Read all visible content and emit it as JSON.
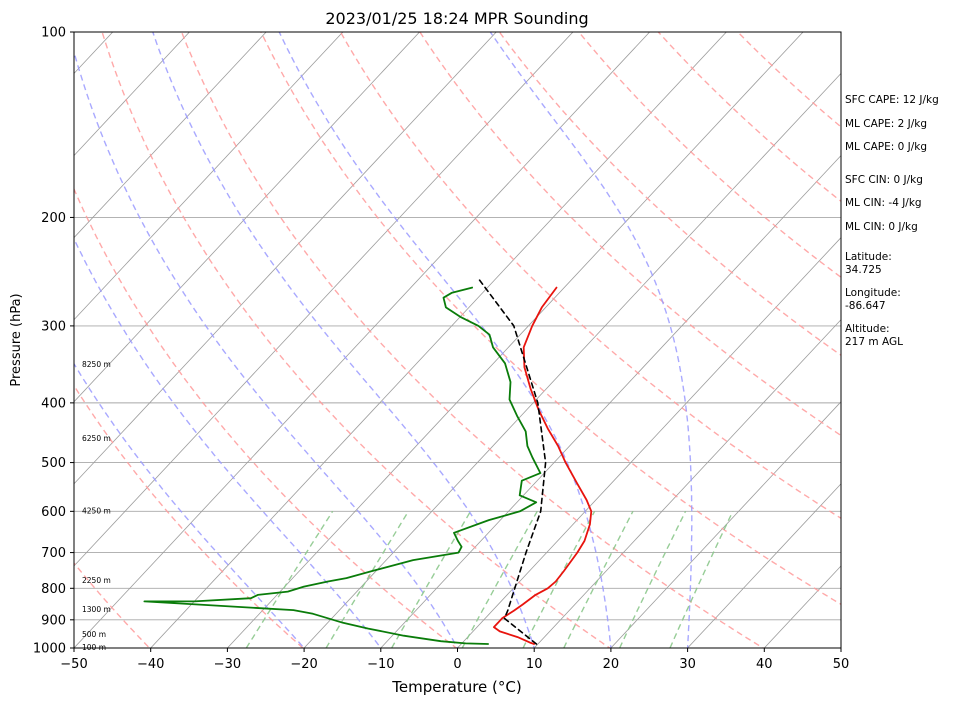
{
  "chart_data": {
    "type": "skew-t",
    "title": "2023/01/25 18:24 MPR Sounding",
    "xlabel": "Temperature (°C)",
    "ylabel": "Pressure (hPa)",
    "xlim": [
      -50,
      50
    ],
    "ylim": [
      1000,
      100
    ],
    "y_scale": "log",
    "x_ticks": [
      "−50",
      "−40",
      "−30",
      "−20",
      "−10",
      "0",
      "10",
      "20",
      "30",
      "40",
      "50"
    ],
    "y_ticks": [
      "100",
      "200",
      "300",
      "400",
      "500",
      "600",
      "700",
      "800",
      "900",
      "1000"
    ],
    "grid": true,
    "height_labels": [
      {
        "text": "100 m",
        "p": 1000
      },
      {
        "text": "500 m",
        "p": 953
      },
      {
        "text": "1300 m",
        "p": 868
      },
      {
        "text": "2250 m",
        "p": 778
      },
      {
        "text": "4250 m",
        "p": 600
      },
      {
        "text": "6250 m",
        "p": 458
      },
      {
        "text": "8250 m",
        "p": 347
      }
    ],
    "series": [
      {
        "color": "#e8140e",
        "style": "solid",
        "points": [
          [
            9.5,
            985
          ],
          [
            8.8,
            980
          ],
          [
            6.5,
            960
          ],
          [
            3.5,
            940
          ],
          [
            2.2,
            925
          ],
          [
            2.2,
            910
          ],
          [
            2.2,
            895
          ],
          [
            2.8,
            870
          ],
          [
            3.2,
            850
          ],
          [
            3.7,
            820
          ],
          [
            4.5,
            800
          ],
          [
            4.7,
            780
          ],
          [
            4.5,
            750
          ],
          [
            4.0,
            700
          ],
          [
            3.5,
            670
          ],
          [
            2.2,
            630
          ],
          [
            0.8,
            600
          ],
          [
            -1.2,
            575
          ],
          [
            -4.5,
            540
          ],
          [
            -8.5,
            500
          ],
          [
            -11.5,
            470
          ],
          [
            -15,
            440
          ],
          [
            -18.5,
            410
          ],
          [
            -22,
            380
          ],
          [
            -25.5,
            350
          ],
          [
            -28,
            325
          ],
          [
            -29.5,
            300
          ],
          [
            -30.5,
            280
          ],
          [
            -31,
            260
          ]
        ]
      },
      {
        "color": "#0a7c0a",
        "style": "solid",
        "points": [
          [
            3.5,
            985
          ],
          [
            0.5,
            983
          ],
          [
            -3,
            975
          ],
          [
            -8.5,
            955
          ],
          [
            -14,
            930
          ],
          [
            -18,
            910
          ],
          [
            -23,
            880
          ],
          [
            -26,
            868
          ],
          [
            -46.5,
            840
          ],
          [
            -40,
            840
          ],
          [
            -33,
            830
          ],
          [
            -32.5,
            820
          ],
          [
            -29,
            810
          ],
          [
            -27.5,
            795
          ],
          [
            -25,
            780
          ],
          [
            -23,
            770
          ],
          [
            -20.5,
            750
          ],
          [
            -16.5,
            720
          ],
          [
            -11.5,
            700
          ],
          [
            -11.8,
            685
          ],
          [
            -13,
            670
          ],
          [
            -14.5,
            650
          ],
          [
            -11.5,
            620
          ],
          [
            -8.5,
            600
          ],
          [
            -7.5,
            580
          ],
          [
            -10.5,
            565
          ],
          [
            -12,
            535
          ],
          [
            -10.5,
            520
          ],
          [
            -13.5,
            490
          ],
          [
            -15.5,
            470
          ],
          [
            -17.5,
            445
          ],
          [
            -20.5,
            420
          ],
          [
            -23.5,
            395
          ],
          [
            -25.5,
            370
          ],
          [
            -28.5,
            345
          ],
          [
            -32,
            325
          ],
          [
            -34,
            310
          ],
          [
            -36.5,
            300
          ],
          [
            -40,
            290
          ],
          [
            -43,
            280
          ],
          [
            -44.5,
            270
          ],
          [
            -44,
            265
          ],
          [
            -42,
            260
          ]
        ]
      },
      {
        "color": "#000000",
        "style": "dashed",
        "points": [
          [
            9.8,
            985
          ],
          [
            2.5,
            895
          ],
          [
            2.0,
            870
          ],
          [
            -2.7,
            700
          ],
          [
            -5.8,
            600
          ],
          [
            -11.1,
            500
          ],
          [
            -19.4,
            400
          ],
          [
            -31.9,
            300
          ],
          [
            -42.6,
            250
          ]
        ]
      }
    ],
    "dry_adiabats_theta_K": [
      213,
      233,
      253,
      273,
      293,
      313,
      333,
      353,
      373,
      393,
      413,
      433,
      453
    ],
    "moist_adiabats_theta_w_C": [
      -20,
      -10,
      0,
      10,
      20,
      30
    ],
    "mixing_ratio_lines_gkg": [
      0.4,
      1,
      2,
      4,
      7,
      10,
      16,
      24
    ]
  },
  "panel": {
    "sfc_cape": "SFC CAPE: 12 J/kg",
    "ml_cape_1": "ML CAPE: 2 J/kg",
    "ml_cape_2": "ML CAPE: 0 J/kg",
    "sfc_cin": "SFC CIN: 0 J/kg",
    "ml_cin_1": "ML CIN: -4 J/kg",
    "ml_cin_2": "ML CIN: 0 J/kg",
    "latitude": "Latitude:\n34.725",
    "longitude": "Longitude:\n-86.647",
    "altitude": "Altitude:\n217 m AGL"
  },
  "colors": {
    "temperature": "#e8140e",
    "dewpoint": "#0a7c0a",
    "parcel": "#000000",
    "dry_adiabat": "#ff9a9a",
    "moist_adiabat": "#9a9aff",
    "mixing_ratio": "#8cc88c",
    "skewed_isotherm": "#9c9c9c",
    "isobar": "#a8a8a8"
  }
}
